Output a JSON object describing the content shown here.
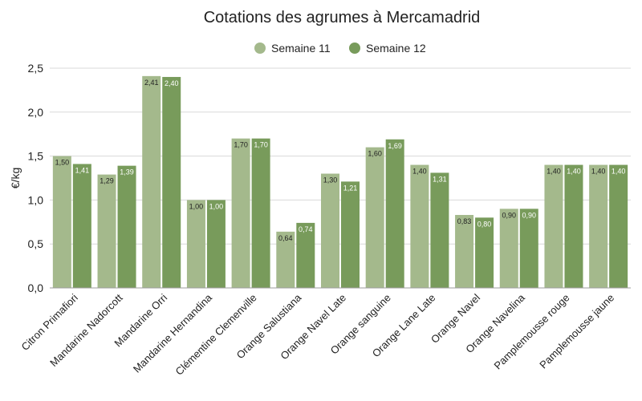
{
  "chart_data": {
    "type": "bar",
    "title": "Cotations des agrumes à Mercamadrid",
    "ylabel": "€/kg",
    "xlabel": "",
    "ylim": [
      0,
      2.5
    ],
    "yticks": [
      "0,0",
      "0,5",
      "1,0",
      "1,5",
      "2,0",
      "2,5"
    ],
    "ytick_values": [
      0,
      0.5,
      1.0,
      1.5,
      2.0,
      2.5
    ],
    "grid": true,
    "legend_position": "top-center",
    "categories": [
      "Citron Primafiori",
      "Mandarine Nadorcott",
      "Mandarine Orri",
      "Mandarine Hernandina",
      "Clémentine Clemenville",
      "Orange Salustiana",
      "Orange Navel Late",
      "Orange sanguine",
      "Orange Lane Late",
      "Orange Navel",
      "Orange Navelina",
      "Pamplemousse rouge",
      "Pamplemousse jaune"
    ],
    "series": [
      {
        "name": "Semaine 11",
        "color": "#a4b98c",
        "values": [
          1.5,
          1.29,
          2.41,
          1.0,
          1.7,
          0.64,
          1.3,
          1.6,
          1.4,
          0.83,
          0.9,
          1.4,
          1.4
        ],
        "labels": [
          "1,50",
          "1,29",
          "2,41",
          "1,00",
          "1,70",
          "0,64",
          "1,30",
          "1,60",
          "1,40",
          "0,83",
          "0,90",
          "1,40",
          "1,40"
        ]
      },
      {
        "name": "Semaine 12",
        "color": "#789b5b",
        "values": [
          1.41,
          1.39,
          2.4,
          1.0,
          1.7,
          0.74,
          1.21,
          1.69,
          1.31,
          0.8,
          0.9,
          1.4,
          1.4
        ],
        "labels": [
          "1,41",
          "1,39",
          "2,40",
          "1,00",
          "1,70",
          "0,74",
          "1,21",
          "1,69",
          "1,31",
          "0,80",
          "0,90",
          "1,40",
          "1,40"
        ]
      }
    ]
  }
}
